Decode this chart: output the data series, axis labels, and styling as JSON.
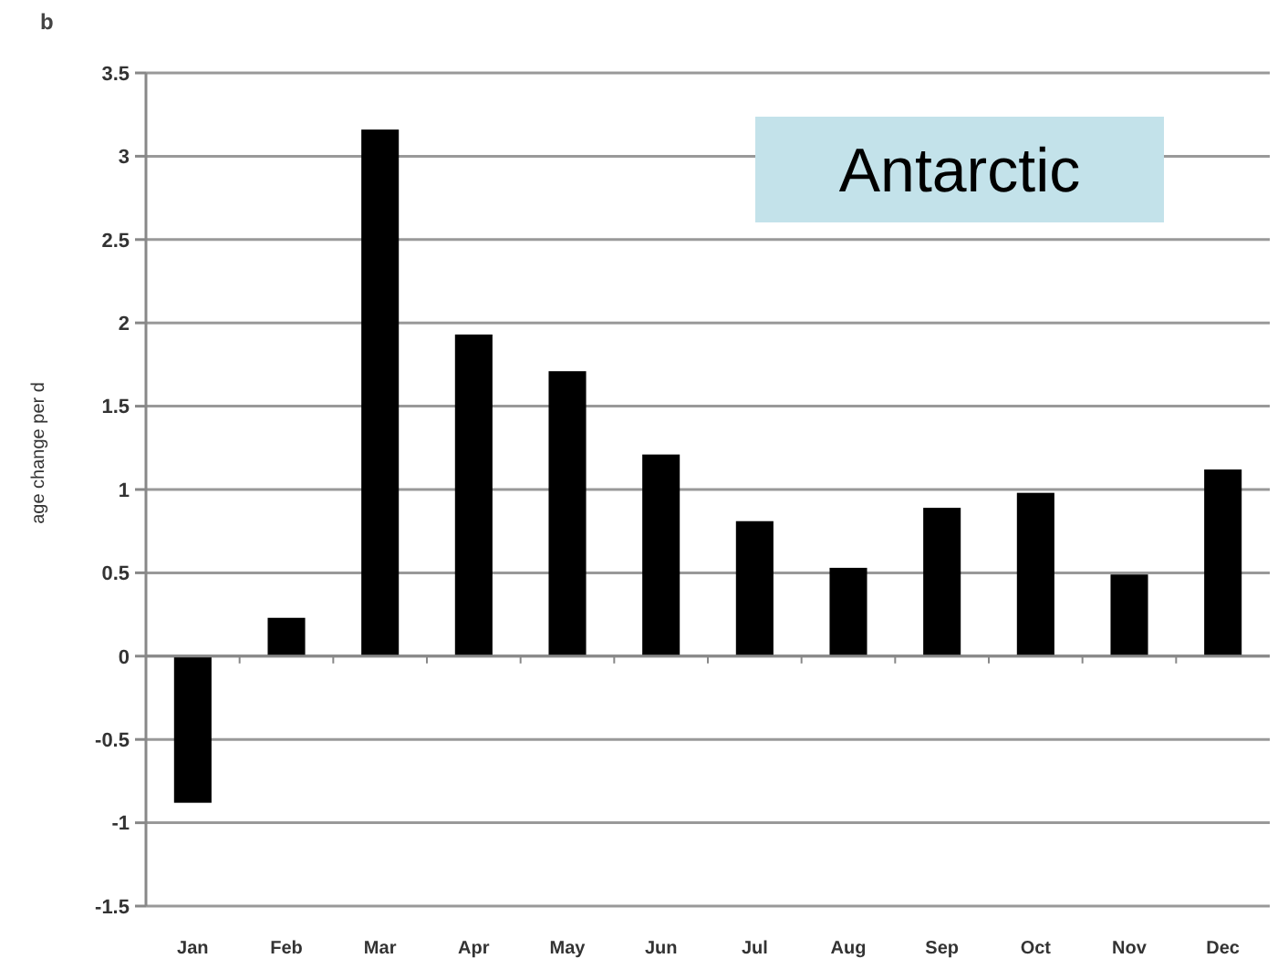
{
  "chart_data": {
    "type": "bar",
    "title": "b",
    "ylabel": "age change per d",
    "annotations": [
      "Antarctic"
    ],
    "categories": [
      "Jan",
      "Feb",
      "Mar",
      "Apr",
      "May",
      "Jun",
      "Jul",
      "Aug",
      "Sep",
      "Oct",
      "Nov",
      "Dec"
    ],
    "values": [
      -0.88,
      0.23,
      3.16,
      1.93,
      1.71,
      1.21,
      0.81,
      0.53,
      0.89,
      0.98,
      0.49,
      1.12
    ],
    "color": "#000000",
    "ylim": [
      -1.5,
      3.5
    ],
    "yticks": [
      -1.5,
      -1,
      -0.5,
      0,
      0.5,
      1,
      1.5,
      2,
      2.5,
      3,
      3.5
    ],
    "grid": "y"
  }
}
